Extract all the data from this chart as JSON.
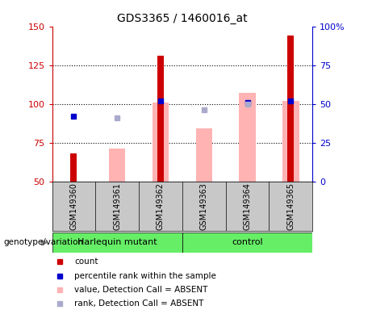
{
  "title": "GDS3365 / 1460016_at",
  "samples": [
    "GSM149360",
    "GSM149361",
    "GSM149362",
    "GSM149363",
    "GSM149364",
    "GSM149365"
  ],
  "ylim_left": [
    50,
    150
  ],
  "ylim_right": [
    0,
    100
  ],
  "yticks_left": [
    50,
    75,
    100,
    125,
    150
  ],
  "yticks_right": [
    0,
    25,
    50,
    75,
    100
  ],
  "yticklabels_right": [
    "0",
    "25",
    "50",
    "75",
    "100%"
  ],
  "count_values": [
    68,
    null,
    131,
    null,
    null,
    144
  ],
  "count_color": "#cc0000",
  "pink_bar_values": [
    null,
    71,
    101,
    84,
    107,
    102
  ],
  "pink_bar_color": "#ffb3b3",
  "blue_square_values": [
    92,
    null,
    102,
    null,
    101,
    102
  ],
  "blue_square_color": "#0000cc",
  "lavender_square_values": [
    null,
    91,
    null,
    96,
    100,
    null
  ],
  "lavender_square_color": "#aaaacc",
  "plot_bg_color": "#ffffff",
  "left_axis_color": "#cc0000",
  "right_axis_color": "#0000cc",
  "sample_bg_color": "#c8c8c8",
  "group_bg_color": "#66ee66",
  "legend_items": [
    "count",
    "percentile rank within the sample",
    "value, Detection Call = ABSENT",
    "rank, Detection Call = ABSENT"
  ],
  "legend_colors": [
    "#cc0000",
    "#0000cc",
    "#ffb3b3",
    "#aaaacc"
  ],
  "hq_label": "Harlequin mutant",
  "ctrl_label": "control",
  "genotype_label": "genotype/variation"
}
